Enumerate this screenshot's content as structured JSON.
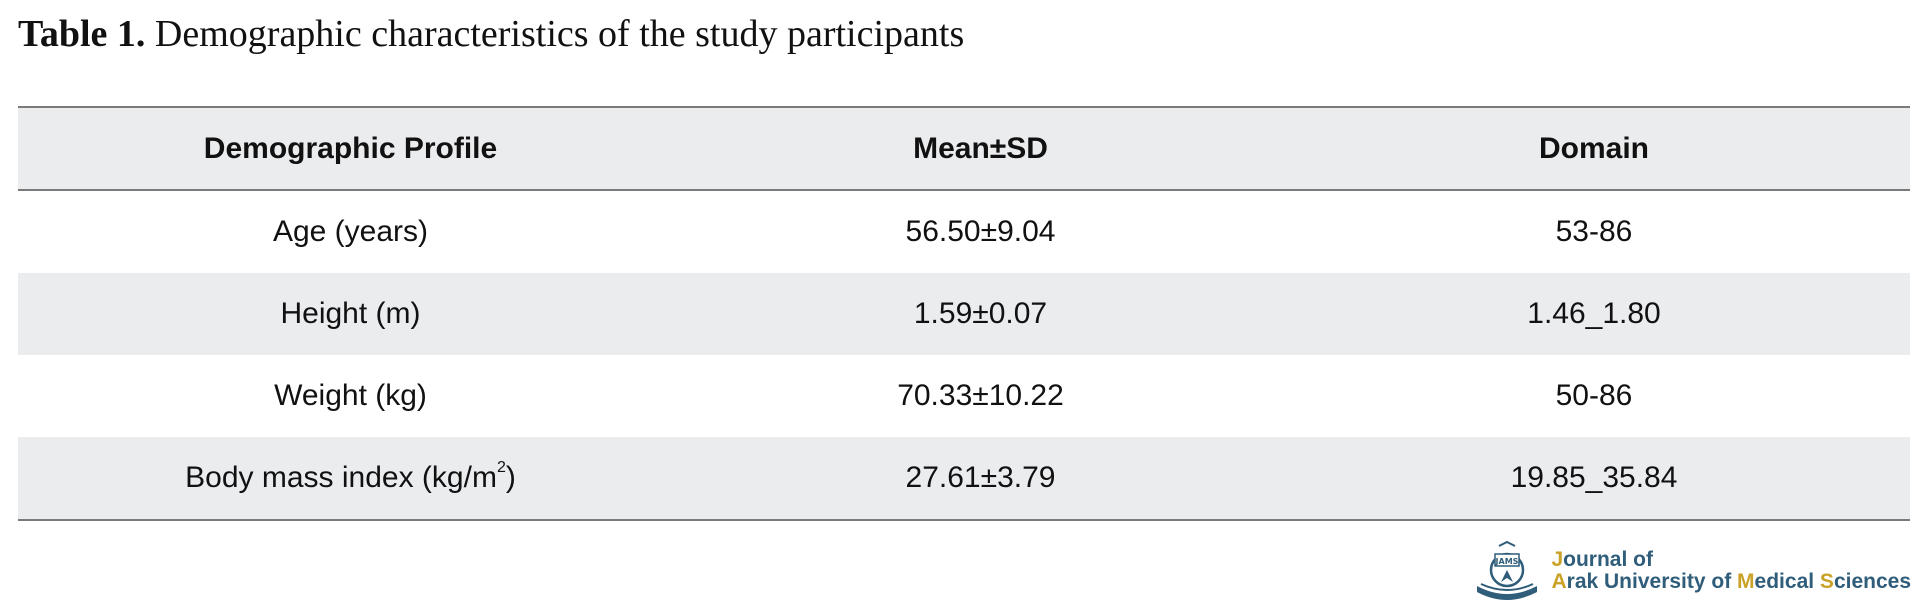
{
  "caption": {
    "label": "Table 1.",
    "text": "Demographic characteristics of the study participants"
  },
  "table": {
    "headers": [
      "Demographic Profile",
      "Mean±SD",
      "Domain"
    ],
    "rows": [
      {
        "profile": "Age (years)",
        "mean_sd": "56.50±9.04",
        "domain": "53-86"
      },
      {
        "profile": "Height (m)",
        "mean_sd": "1.59±0.07",
        "domain": "1.46_1.80"
      },
      {
        "profile": "Weight (kg)",
        "mean_sd": "70.33±10.22",
        "domain": "50-86"
      },
      {
        "profile_prefix": "Body mass index (kg/m",
        "profile_sup": "2",
        "profile_suffix": ")",
        "mean_sd": "27.61±3.79",
        "domain": "19.85_35.84"
      }
    ]
  },
  "logo": {
    "icon": "journal-emblem-icon",
    "emblem_text": "JAMS",
    "line1_first": "J",
    "line1_rest": "ournal of",
    "line2_a": "A",
    "line2_b": "rak University of ",
    "line2_c": "M",
    "line2_d": "edical ",
    "line2_e": "S",
    "line2_f": "ciences",
    "colors": {
      "primary": "#2f5d7a",
      "accent": "#c9a227"
    }
  }
}
